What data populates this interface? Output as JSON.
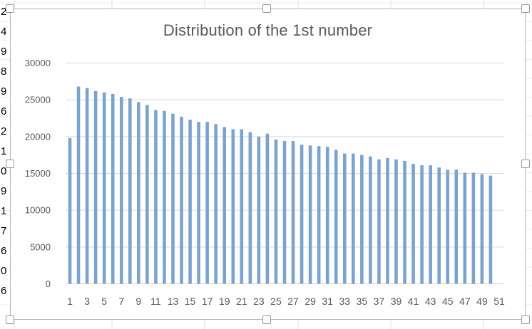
{
  "chart_data": {
    "type": "bar",
    "title": "Distribution of the 1st number",
    "xlabel": "",
    "ylabel": "",
    "ylim": [
      0,
      30000
    ],
    "yticks": [
      0,
      5000,
      10000,
      15000,
      20000,
      25000,
      30000
    ],
    "grid": true,
    "legend": "none",
    "bar_color": "#7ba3d0",
    "categories": [
      1,
      2,
      3,
      4,
      5,
      6,
      7,
      8,
      9,
      10,
      11,
      12,
      13,
      14,
      15,
      16,
      17,
      18,
      19,
      20,
      21,
      22,
      23,
      24,
      25,
      26,
      27,
      28,
      29,
      30,
      31,
      32,
      33,
      34,
      35,
      36,
      37,
      38,
      39,
      40,
      41,
      42,
      43,
      44,
      45,
      46,
      47,
      48,
      49,
      50,
      51
    ],
    "xtick_labels": [
      "1",
      "3",
      "5",
      "7",
      "9",
      "11",
      "13",
      "15",
      "17",
      "19",
      "21",
      "23",
      "25",
      "27",
      "29",
      "31",
      "33",
      "35",
      "37",
      "39",
      "41",
      "43",
      "45",
      "47",
      "49",
      "51"
    ],
    "values": [
      19800,
      26800,
      26600,
      26200,
      26000,
      25800,
      25400,
      25200,
      24700,
      24300,
      23600,
      23500,
      23100,
      22700,
      22300,
      22000,
      22000,
      21700,
      21300,
      21000,
      21000,
      20600,
      20000,
      20400,
      19600,
      19400,
      19400,
      18900,
      18800,
      18700,
      18600,
      18200,
      17700,
      17700,
      17500,
      17300,
      16900,
      17100,
      16900,
      16700,
      16300,
      16100,
      16100,
      15800,
      15500,
      15500,
      15100,
      15100,
      14900,
      14700,
      0
    ]
  },
  "sheet_margin_digits": [
    "2",
    "4",
    "9",
    "8",
    "9",
    "6",
    "2",
    "1",
    "0",
    "9",
    "1",
    "7",
    "6",
    "0",
    "6"
  ],
  "colors": {
    "axis_text": "#595959",
    "gridline": "#d9d9d9",
    "frame": "#b4b4b4"
  }
}
